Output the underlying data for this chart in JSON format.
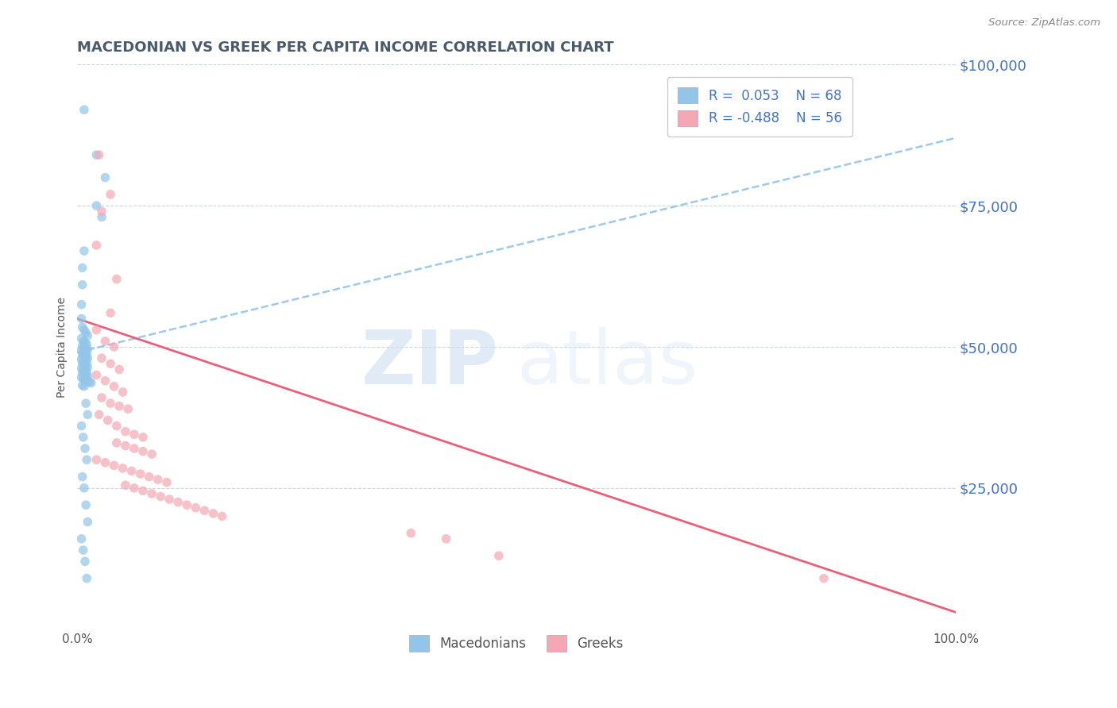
{
  "title": "MACEDONIAN VS GREEK PER CAPITA INCOME CORRELATION CHART",
  "source": "Source: ZipAtlas.com",
  "ylabel": "Per Capita Income",
  "xlim": [
    0,
    1
  ],
  "ylim": [
    0,
    100000
  ],
  "yticks": [
    0,
    25000,
    50000,
    75000,
    100000
  ],
  "ytick_labels": [
    "",
    "$25,000",
    "$50,000",
    "$75,000",
    "$100,000"
  ],
  "xtick_labels": [
    "0.0%",
    "100.0%"
  ],
  "legend_text1": "R =  0.053    N = 68",
  "legend_text2": "R = -0.488    N = 56",
  "macedonian_color": "#92C5E8",
  "greek_color": "#F4A7B4",
  "trend_blue_color": "#92C5E8",
  "trend_pink_color": "#E8607A",
  "watermark_zip": "ZIP",
  "watermark_atlas": "atlas",
  "title_color": "#4472C4",
  "axis_color": "#4472C4",
  "label_color": "#555555",
  "grid_color": "#C8D8E8",
  "background_color": "#FFFFFF",
  "blue_trend_y0": 49000,
  "blue_trend_y1": 87000,
  "pink_trend_y0": 55000,
  "pink_trend_y1": 3000,
  "blue_dots": [
    [
      0.008,
      92000
    ],
    [
      0.022,
      84000
    ],
    [
      0.032,
      80000
    ],
    [
      0.022,
      75000
    ],
    [
      0.028,
      73000
    ],
    [
      0.008,
      67000
    ],
    [
      0.006,
      64000
    ],
    [
      0.006,
      61000
    ],
    [
      0.005,
      57500
    ],
    [
      0.005,
      55000
    ],
    [
      0.006,
      53500
    ],
    [
      0.008,
      53000
    ],
    [
      0.01,
      52500
    ],
    [
      0.012,
      52000
    ],
    [
      0.005,
      51500
    ],
    [
      0.007,
      51000
    ],
    [
      0.009,
      50800
    ],
    [
      0.011,
      50500
    ],
    [
      0.006,
      50200
    ],
    [
      0.008,
      50000
    ],
    [
      0.01,
      49800
    ],
    [
      0.012,
      49600
    ],
    [
      0.005,
      49400
    ],
    [
      0.007,
      49200
    ],
    [
      0.009,
      49000
    ],
    [
      0.011,
      48800
    ],
    [
      0.006,
      48600
    ],
    [
      0.008,
      48400
    ],
    [
      0.01,
      48200
    ],
    [
      0.012,
      48000
    ],
    [
      0.005,
      47800
    ],
    [
      0.007,
      47600
    ],
    [
      0.009,
      47400
    ],
    [
      0.011,
      47200
    ],
    [
      0.006,
      47000
    ],
    [
      0.008,
      46800
    ],
    [
      0.01,
      46600
    ],
    [
      0.012,
      46400
    ],
    [
      0.005,
      46200
    ],
    [
      0.007,
      46000
    ],
    [
      0.009,
      45800
    ],
    [
      0.011,
      45600
    ],
    [
      0.006,
      45400
    ],
    [
      0.008,
      45200
    ],
    [
      0.01,
      45000
    ],
    [
      0.012,
      44800
    ],
    [
      0.005,
      44600
    ],
    [
      0.007,
      44400
    ],
    [
      0.009,
      44200
    ],
    [
      0.011,
      44000
    ],
    [
      0.014,
      43800
    ],
    [
      0.016,
      43600
    ],
    [
      0.006,
      43200
    ],
    [
      0.008,
      43000
    ],
    [
      0.01,
      40000
    ],
    [
      0.012,
      38000
    ],
    [
      0.005,
      36000
    ],
    [
      0.007,
      34000
    ],
    [
      0.009,
      32000
    ],
    [
      0.011,
      30000
    ],
    [
      0.006,
      27000
    ],
    [
      0.008,
      25000
    ],
    [
      0.01,
      22000
    ],
    [
      0.012,
      19000
    ],
    [
      0.005,
      16000
    ],
    [
      0.007,
      14000
    ],
    [
      0.009,
      12000
    ],
    [
      0.011,
      9000
    ]
  ],
  "pink_dots": [
    [
      0.025,
      84000
    ],
    [
      0.038,
      77000
    ],
    [
      0.028,
      74000
    ],
    [
      0.022,
      68000
    ],
    [
      0.045,
      62000
    ],
    [
      0.038,
      56000
    ],
    [
      0.022,
      53000
    ],
    [
      0.032,
      51000
    ],
    [
      0.042,
      50000
    ],
    [
      0.028,
      48000
    ],
    [
      0.038,
      47000
    ],
    [
      0.048,
      46000
    ],
    [
      0.022,
      45000
    ],
    [
      0.032,
      44000
    ],
    [
      0.042,
      43000
    ],
    [
      0.052,
      42000
    ],
    [
      0.028,
      41000
    ],
    [
      0.038,
      40000
    ],
    [
      0.048,
      39500
    ],
    [
      0.058,
      39000
    ],
    [
      0.025,
      38000
    ],
    [
      0.035,
      37000
    ],
    [
      0.045,
      36000
    ],
    [
      0.055,
      35000
    ],
    [
      0.065,
      34500
    ],
    [
      0.075,
      34000
    ],
    [
      0.045,
      33000
    ],
    [
      0.055,
      32500
    ],
    [
      0.065,
      32000
    ],
    [
      0.075,
      31500
    ],
    [
      0.085,
      31000
    ],
    [
      0.022,
      30000
    ],
    [
      0.032,
      29500
    ],
    [
      0.042,
      29000
    ],
    [
      0.052,
      28500
    ],
    [
      0.062,
      28000
    ],
    [
      0.072,
      27500
    ],
    [
      0.082,
      27000
    ],
    [
      0.092,
      26500
    ],
    [
      0.102,
      26000
    ],
    [
      0.055,
      25500
    ],
    [
      0.065,
      25000
    ],
    [
      0.075,
      24500
    ],
    [
      0.085,
      24000
    ],
    [
      0.095,
      23500
    ],
    [
      0.105,
      23000
    ],
    [
      0.115,
      22500
    ],
    [
      0.125,
      22000
    ],
    [
      0.135,
      21500
    ],
    [
      0.145,
      21000
    ],
    [
      0.155,
      20500
    ],
    [
      0.165,
      20000
    ],
    [
      0.38,
      17000
    ],
    [
      0.42,
      16000
    ],
    [
      0.48,
      13000
    ],
    [
      0.85,
      9000
    ]
  ]
}
